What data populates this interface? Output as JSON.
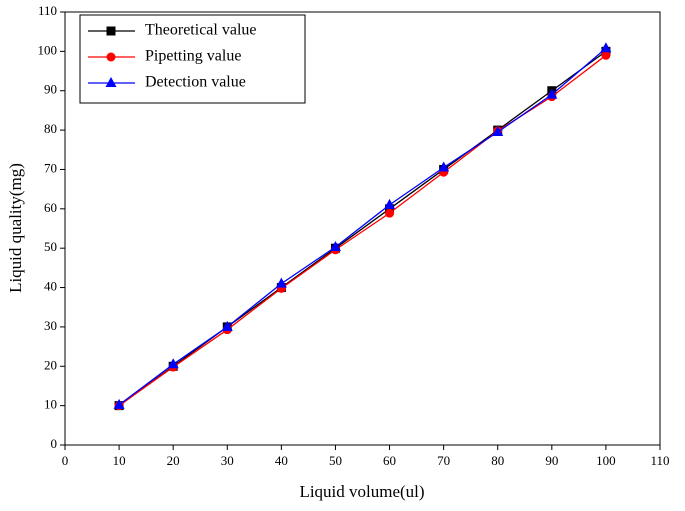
{
  "chart_data": {
    "type": "line",
    "x_label": "Liquid volume(ul)",
    "y_label": "Liquid quality(mg)",
    "x": [
      10,
      20,
      30,
      40,
      50,
      60,
      70,
      80,
      90,
      100
    ],
    "series": [
      {
        "name": "Theoretical value",
        "color": "#000000",
        "marker": "square",
        "values": [
          10,
          20,
          30,
          40,
          50,
          60,
          70,
          80,
          90,
          100
        ]
      },
      {
        "name": "Pipetting value",
        "color": "#ff0000",
        "marker": "circle",
        "values": [
          10,
          19.8,
          29.3,
          39.8,
          49.6,
          58.9,
          69.3,
          79.8,
          88.5,
          99
        ]
      },
      {
        "name": "Detection value",
        "color": "#0000ff",
        "marker": "triangle",
        "values": [
          10.2,
          20.5,
          30,
          41,
          50.3,
          61,
          70.5,
          79.5,
          89,
          100.8
        ]
      }
    ],
    "xlim": [
      0,
      110
    ],
    "xticks": [
      0,
      10,
      20,
      30,
      40,
      50,
      60,
      70,
      80,
      90,
      100,
      110
    ],
    "ylim": [
      0,
      110
    ],
    "yticks": [
      0,
      10,
      20,
      30,
      40,
      50,
      60,
      70,
      80,
      90,
      100,
      110
    ],
    "legend": "upper-left"
  }
}
